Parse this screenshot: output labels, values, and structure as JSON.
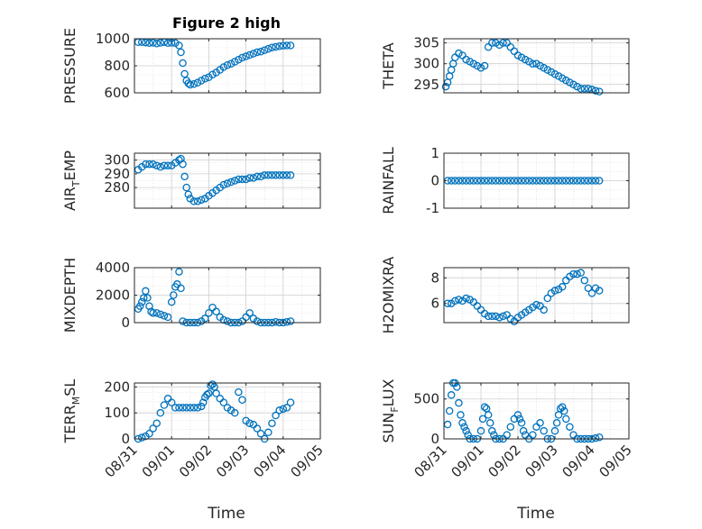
{
  "figure": {
    "title": "Figure 2 high",
    "xlabel": "Time",
    "x_tick_labels": [
      "08/31",
      "09/01",
      "09/02",
      "09/03",
      "09/04",
      "09/05"
    ]
  },
  "chart_data": [
    {
      "type": "scatter",
      "name": "PRESSURE",
      "ylabel": "PRESSURE",
      "ylim": [
        600,
        1000
      ],
      "yticks": [
        600,
        800,
        1000
      ],
      "xlim": [
        0,
        5
      ],
      "grid": true,
      "x": [
        0.1,
        0.2,
        0.3,
        0.4,
        0.5,
        0.6,
        0.7,
        0.8,
        0.9,
        1.0,
        1.1,
        1.2,
        1.25,
        1.3,
        1.35,
        1.4,
        1.45,
        1.5,
        1.6,
        1.7,
        1.8,
        1.9,
        2.0,
        2.1,
        2.2,
        2.3,
        2.4,
        2.5,
        2.6,
        2.7,
        2.8,
        2.9,
        3.0,
        3.1,
        3.2,
        3.3,
        3.4,
        3.5,
        3.6,
        3.7,
        3.8,
        3.9,
        4.0,
        4.1,
        4.2
      ],
      "y": [
        975,
        975,
        972,
        968,
        970,
        965,
        970,
        975,
        968,
        970,
        968,
        950,
        900,
        820,
        740,
        690,
        670,
        660,
        665,
        675,
        690,
        705,
        715,
        735,
        750,
        770,
        790,
        805,
        815,
        830,
        845,
        860,
        870,
        880,
        890,
        900,
        905,
        915,
        925,
        935,
        940,
        945,
        948,
        950,
        950
      ]
    },
    {
      "type": "scatter",
      "name": "THETA",
      "ylabel": "THETA",
      "ylim": [
        293,
        306
      ],
      "yticks": [
        295,
        300,
        305
      ],
      "xlim": [
        0,
        5
      ],
      "grid": true,
      "x": [
        0.05,
        0.1,
        0.15,
        0.2,
        0.25,
        0.3,
        0.4,
        0.5,
        0.6,
        0.7,
        0.8,
        0.9,
        1.0,
        1.1,
        1.2,
        1.3,
        1.4,
        1.5,
        1.6,
        1.7,
        1.8,
        1.9,
        2.0,
        2.1,
        2.2,
        2.3,
        2.4,
        2.5,
        2.6,
        2.7,
        2.8,
        2.9,
        3.0,
        3.1,
        3.2,
        3.3,
        3.4,
        3.5,
        3.6,
        3.7,
        3.8,
        3.9,
        4.0,
        4.1,
        4.2
      ],
      "y": [
        294.5,
        295.5,
        297,
        298.5,
        300,
        301.5,
        302.5,
        302,
        301,
        300.5,
        300,
        299.5,
        299,
        299.5,
        304,
        305,
        305,
        304.5,
        305,
        305,
        304,
        303,
        302,
        301.5,
        301,
        300.5,
        300,
        300,
        299.5,
        299,
        298.5,
        298,
        297.5,
        297,
        296.5,
        296,
        295.5,
        295,
        294.5,
        294,
        294,
        294,
        293.8,
        293.5,
        293.3
      ]
    },
    {
      "type": "scatter",
      "name": "AIR_TEMP",
      "ylabel": "AIR_TEMP",
      "ylim": [
        265,
        305
      ],
      "yticks": [
        280,
        290,
        300
      ],
      "xlim": [
        0,
        5
      ],
      "grid": true,
      "x": [
        0.1,
        0.2,
        0.3,
        0.4,
        0.5,
        0.6,
        0.7,
        0.8,
        0.9,
        1.0,
        1.1,
        1.2,
        1.25,
        1.3,
        1.35,
        1.4,
        1.45,
        1.5,
        1.6,
        1.7,
        1.8,
        1.9,
        2.0,
        2.1,
        2.2,
        2.3,
        2.4,
        2.5,
        2.6,
        2.7,
        2.8,
        2.9,
        3.0,
        3.1,
        3.2,
        3.3,
        3.4,
        3.5,
        3.6,
        3.7,
        3.8,
        3.9,
        4.0,
        4.1,
        4.2
      ],
      "y": [
        293,
        295,
        297,
        297,
        297,
        296,
        295,
        296,
        296,
        296,
        298,
        300,
        301,
        297,
        288,
        280,
        275,
        272,
        270,
        270,
        271,
        272,
        274,
        276,
        278,
        280,
        282,
        283,
        284,
        285,
        286,
        286,
        286,
        287,
        287,
        288,
        288,
        289,
        289,
        289,
        289,
        289,
        289,
        289,
        289
      ]
    },
    {
      "type": "scatter",
      "name": "RAINFALL",
      "ylabel": "RAINFALL",
      "ylim": [
        -1,
        1
      ],
      "yticks": [
        -1,
        0,
        1
      ],
      "xlim": [
        0,
        5
      ],
      "grid": true,
      "x": [
        0.1,
        0.2,
        0.3,
        0.4,
        0.5,
        0.6,
        0.7,
        0.8,
        0.9,
        1.0,
        1.1,
        1.2,
        1.3,
        1.4,
        1.5,
        1.6,
        1.7,
        1.8,
        1.9,
        2.0,
        2.1,
        2.2,
        2.3,
        2.4,
        2.5,
        2.6,
        2.7,
        2.8,
        2.9,
        3.0,
        3.1,
        3.2,
        3.3,
        3.4,
        3.5,
        3.6,
        3.7,
        3.8,
        3.9,
        4.0,
        4.1,
        4.2
      ],
      "y": [
        0,
        0,
        0,
        0,
        0,
        0,
        0,
        0,
        0,
        0,
        0,
        0,
        0,
        0,
        0,
        0,
        0,
        0,
        0,
        0,
        0,
        0,
        0,
        0,
        0,
        0,
        0,
        0,
        0,
        0,
        0,
        0,
        0,
        0,
        0,
        0,
        0,
        0,
        0,
        0,
        0,
        0
      ]
    },
    {
      "type": "scatter",
      "name": "MIXDEPTH",
      "ylabel": "MIXDEPTH",
      "ylim": [
        0,
        4000
      ],
      "yticks": [
        0,
        2000,
        4000
      ],
      "xlim": [
        0,
        5
      ],
      "grid": true,
      "x": [
        0.1,
        0.15,
        0.2,
        0.25,
        0.3,
        0.35,
        0.4,
        0.45,
        0.5,
        0.6,
        0.7,
        0.8,
        0.9,
        1.0,
        1.05,
        1.1,
        1.15,
        1.2,
        1.25,
        1.3,
        1.4,
        1.5,
        1.6,
        1.7,
        1.8,
        1.9,
        2.0,
        2.1,
        2.2,
        2.3,
        2.4,
        2.5,
        2.6,
        2.7,
        2.8,
        2.9,
        3.0,
        3.1,
        3.2,
        3.3,
        3.4,
        3.5,
        3.6,
        3.7,
        3.8,
        3.9,
        4.0,
        4.1,
        4.2
      ],
      "y": [
        1000,
        1200,
        1500,
        1800,
        2300,
        1800,
        1200,
        800,
        700,
        700,
        600,
        500,
        400,
        1500,
        2000,
        2600,
        2800,
        3700,
        2500,
        100,
        0,
        0,
        0,
        0,
        100,
        300,
        700,
        1100,
        800,
        400,
        200,
        100,
        0,
        0,
        0,
        100,
        400,
        700,
        300,
        100,
        0,
        0,
        0,
        0,
        50,
        0,
        0,
        50,
        100
      ]
    },
    {
      "type": "scatter",
      "name": "H2OMIXRA",
      "ylabel": "H2OMIXRA",
      "ylim": [
        4.5,
        8.8
      ],
      "yticks": [
        6,
        8
      ],
      "xlim": [
        0,
        5
      ],
      "grid": true,
      "x": [
        0.1,
        0.2,
        0.3,
        0.4,
        0.5,
        0.6,
        0.7,
        0.8,
        0.9,
        1.0,
        1.1,
        1.2,
        1.3,
        1.4,
        1.5,
        1.6,
        1.7,
        1.8,
        1.9,
        2.0,
        2.1,
        2.2,
        2.3,
        2.4,
        2.5,
        2.6,
        2.7,
        2.8,
        2.9,
        3.0,
        3.1,
        3.2,
        3.3,
        3.4,
        3.5,
        3.6,
        3.7,
        3.8,
        3.9,
        4.0,
        4.1,
        4.2
      ],
      "y": [
        6,
        6,
        6.2,
        6.3,
        6.2,
        6.4,
        6.3,
        6.1,
        5.8,
        5.5,
        5.2,
        5,
        5,
        5,
        4.9,
        5,
        5.1,
        4.8,
        4.6,
        4.9,
        5.1,
        5.3,
        5.5,
        5.7,
        5.9,
        5.8,
        5.5,
        6.4,
        6.8,
        7,
        7.1,
        7.3,
        7.8,
        8.1,
        8.3,
        8.3,
        8.4,
        7.8,
        7.2,
        6.8,
        7.2,
        7
      ]
    },
    {
      "type": "scatter",
      "name": "TERR_MSL",
      "ylabel": "TERR_MSL",
      "ylim": [
        0,
        215
      ],
      "yticks": [
        0,
        100,
        200
      ],
      "xlim": [
        0,
        5
      ],
      "grid": true,
      "x": [
        0.1,
        0.2,
        0.3,
        0.4,
        0.5,
        0.6,
        0.7,
        0.8,
        0.9,
        1.0,
        1.1,
        1.2,
        1.3,
        1.4,
        1.5,
        1.6,
        1.7,
        1.8,
        1.85,
        1.9,
        1.95,
        2.0,
        2.05,
        2.1,
        2.15,
        2.2,
        2.3,
        2.4,
        2.5,
        2.6,
        2.7,
        2.8,
        2.9,
        3.0,
        3.1,
        3.2,
        3.3,
        3.4,
        3.5,
        3.6,
        3.7,
        3.8,
        3.9,
        4.0,
        4.1,
        4.2
      ],
      "y": [
        0,
        5,
        10,
        20,
        40,
        60,
        100,
        130,
        155,
        140,
        120,
        120,
        120,
        120,
        120,
        120,
        120,
        125,
        140,
        160,
        170,
        175,
        205,
        210,
        200,
        175,
        155,
        140,
        120,
        110,
        100,
        180,
        150,
        70,
        60,
        55,
        40,
        20,
        0,
        25,
        60,
        90,
        110,
        115,
        120,
        140
      ]
    },
    {
      "type": "scatter",
      "name": "SUN_FLUX",
      "ylabel": "SUN_FLUX",
      "ylim": [
        0,
        700
      ],
      "yticks": [
        0,
        500
      ],
      "xlim": [
        0,
        5
      ],
      "grid": true,
      "x": [
        0.1,
        0.15,
        0.2,
        0.25,
        0.3,
        0.35,
        0.4,
        0.45,
        0.5,
        0.55,
        0.6,
        0.65,
        0.7,
        0.8,
        0.9,
        1.0,
        1.05,
        1.1,
        1.15,
        1.2,
        1.25,
        1.3,
        1.35,
        1.4,
        1.5,
        1.6,
        1.7,
        1.8,
        1.9,
        2.0,
        2.05,
        2.1,
        2.15,
        2.2,
        2.3,
        2.4,
        2.5,
        2.6,
        2.7,
        2.8,
        2.9,
        3.0,
        3.05,
        3.1,
        3.15,
        3.2,
        3.25,
        3.3,
        3.4,
        3.5,
        3.6,
        3.7,
        3.8,
        3.9,
        4.0,
        4.1,
        4.2
      ],
      "y": [
        180,
        350,
        550,
        700,
        700,
        650,
        450,
        300,
        200,
        150,
        100,
        50,
        0,
        0,
        0,
        100,
        250,
        400,
        380,
        300,
        200,
        100,
        50,
        0,
        0,
        0,
        50,
        150,
        250,
        300,
        250,
        200,
        100,
        50,
        0,
        50,
        150,
        200,
        100,
        0,
        0,
        100,
        200,
        300,
        380,
        400,
        350,
        250,
        150,
        50,
        0,
        0,
        0,
        0,
        0,
        10,
        20
      ]
    }
  ]
}
